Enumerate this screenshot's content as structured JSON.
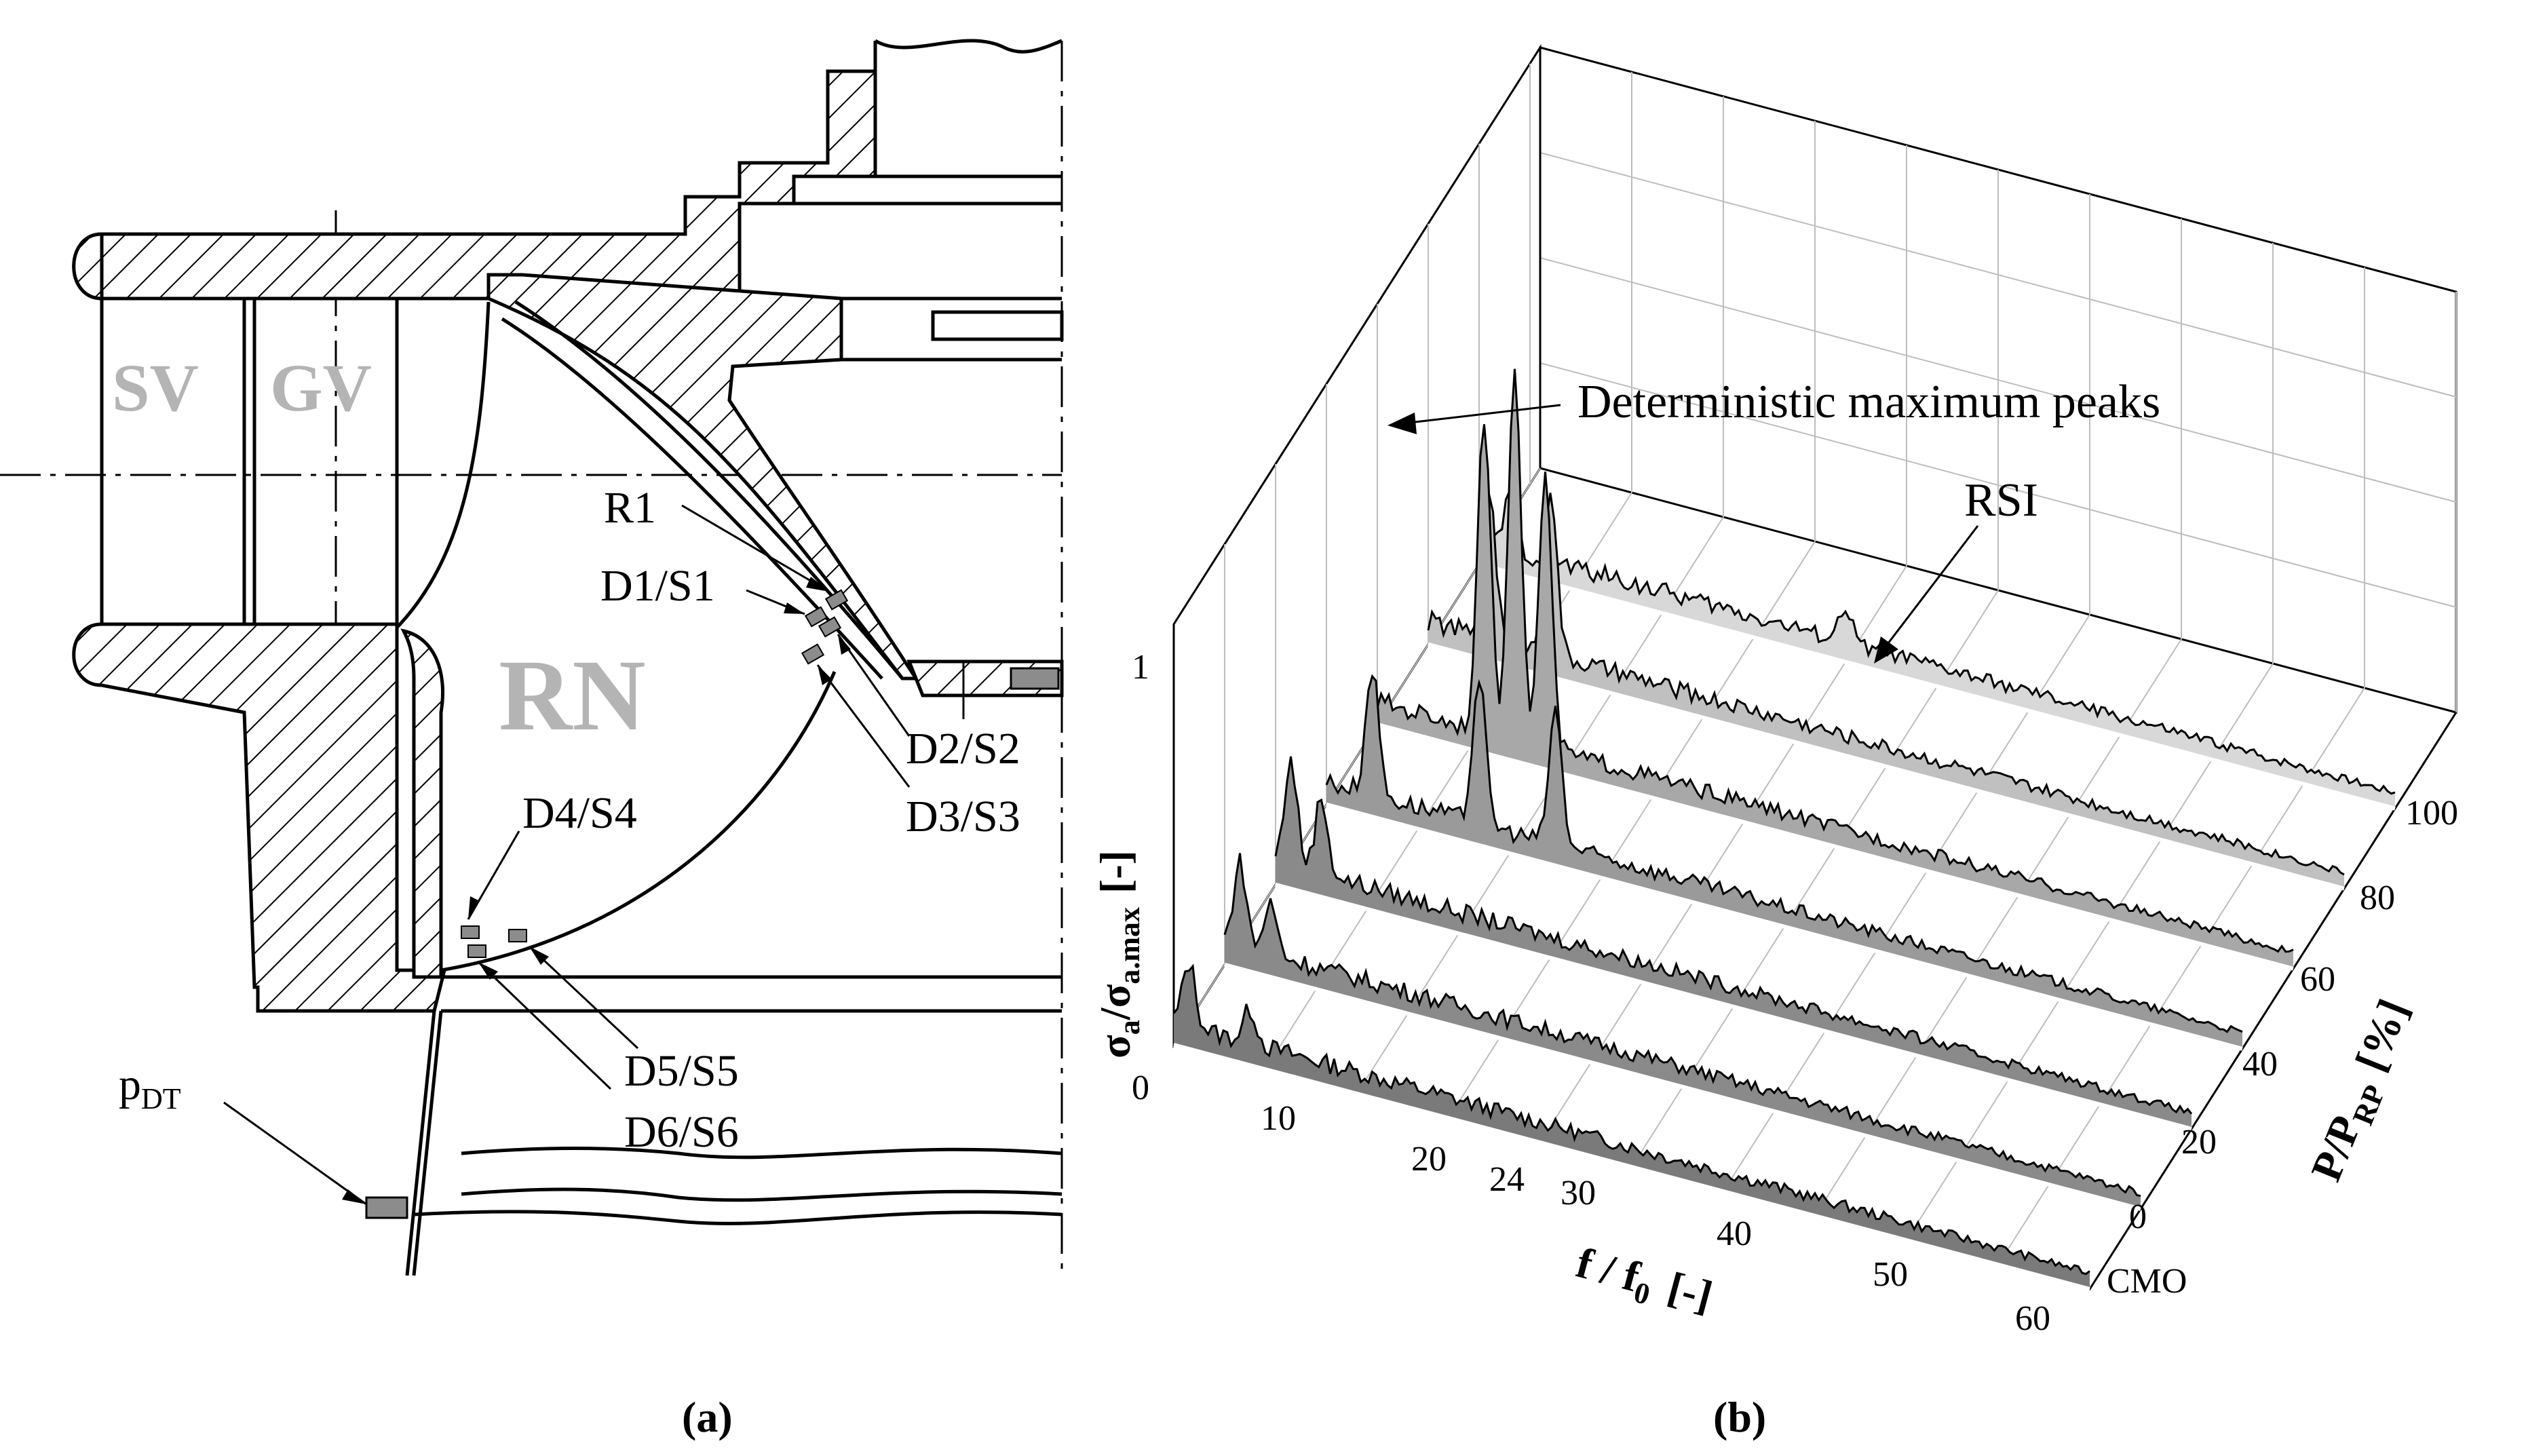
{
  "panel_a": {
    "caption": "(a)",
    "region_labels": {
      "sv": "SV",
      "gv": "GV",
      "rn": "RN"
    },
    "sensor_labels": {
      "r1": "R1",
      "d1": "D1/S1",
      "d2": "D2/S2",
      "d3": "D3/S3",
      "d4": "D4/S4",
      "d5": "D5/S5",
      "d6": "D6/S6",
      "pdt_main": "p",
      "pdt_sub": "DT"
    },
    "colors": {
      "region_label": "#b4b4b4",
      "sensor_fill": "#8c8c8c"
    }
  },
  "panel_b": {
    "caption": "(b)",
    "annotations": {
      "peaks": "Deterministic maximum peaks",
      "rsi": "RSI"
    },
    "x_axis": {
      "label_main": "f / f",
      "label_sub": "0",
      "label_unit": "[-]",
      "ticks": [
        "10",
        "20",
        "24",
        "30",
        "40",
        "50",
        "60"
      ]
    },
    "y_axis": {
      "label_main": "P/P",
      "label_sub": "RP",
      "label_unit": "[%]",
      "ticks": [
        "CMO",
        "0",
        "20",
        "40",
        "60",
        "80",
        "100"
      ]
    },
    "z_axis": {
      "label_sigma": "σ",
      "label_sub_a": "a",
      "label_slash": "/",
      "label_sigma2": "σ",
      "label_sub_max": "a.max",
      "label_unit": "[-]",
      "ticks": [
        "0",
        "1"
      ]
    }
  },
  "chart_data": {
    "type": "waterfall",
    "x": {
      "range": [
        0,
        60
      ]
    },
    "y": {
      "categories": [
        "CMO",
        "0",
        "20",
        "40",
        "60",
        "80",
        "100"
      ]
    },
    "z": {
      "range": [
        0,
        1
      ]
    },
    "series": [
      {
        "name": "CMO",
        "peaks": [
          {
            "x": 1,
            "z": 0.15
          },
          {
            "x": 5,
            "z": 0.08
          }
        ]
      },
      {
        "name": "0",
        "peaks": [
          {
            "x": 1,
            "z": 0.2
          },
          {
            "x": 3,
            "z": 0.12
          }
        ]
      },
      {
        "name": "20",
        "peaks": [
          {
            "x": 1,
            "z": 0.25
          },
          {
            "x": 3,
            "z": 0.18
          }
        ]
      },
      {
        "name": "40",
        "peaks": [
          {
            "x": 3,
            "z": 0.3
          },
          {
            "x": 10,
            "z": 0.35
          },
          {
            "x": 15,
            "z": 0.32
          }
        ]
      },
      {
        "name": "60",
        "peaks": [
          {
            "x": 7,
            "z": 0.75
          },
          {
            "x": 9,
            "z": 0.9
          },
          {
            "x": 11,
            "z": 0.65
          }
        ]
      },
      {
        "name": "80",
        "peaks": [
          {
            "x": 4,
            "z": 0.35
          },
          {
            "x": 8,
            "z": 0.4
          }
        ]
      },
      {
        "name": "100",
        "peaks": [
          {
            "x": 2,
            "z": 0.12
          },
          {
            "x": 24,
            "z": 0.08
          }
        ]
      }
    ]
  }
}
